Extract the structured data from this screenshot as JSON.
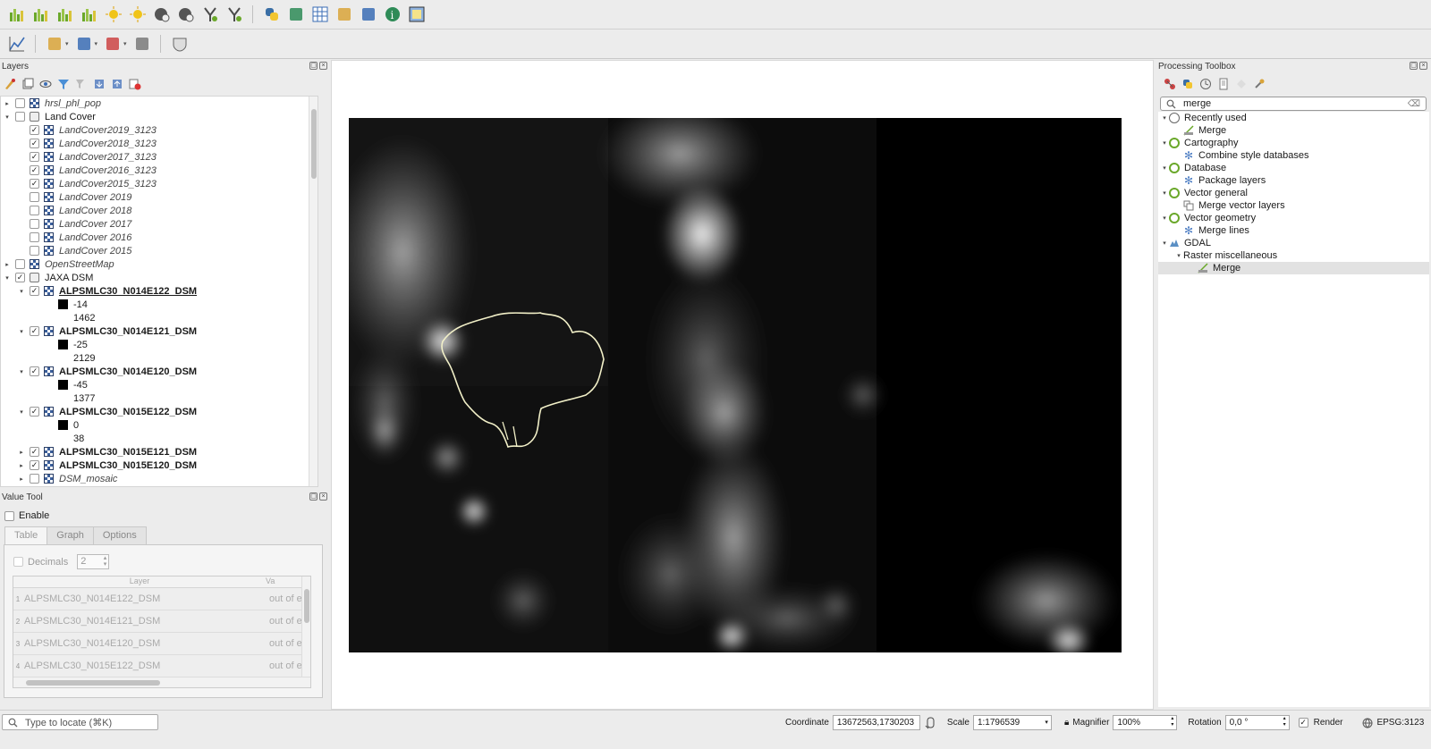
{
  "toolbar1": {
    "icons": [
      "histogram-icon",
      "histogram-edit-icon",
      "histogram-alt-icon",
      "histogram-filter-icon",
      "sun-add-icon",
      "sun-icon",
      "globe-settings-icon",
      "globe-icon",
      "vector-y-icon",
      "vector-y-alt-icon",
      "python-icon",
      "camera-icon",
      "grid-icon",
      "path-tool-icon",
      "sync-icon",
      "info-icon",
      "image-icon"
    ]
  },
  "toolbar2": {
    "icons": [
      "profile-chart-icon",
      "select-features-icon",
      "attribute-table-icon",
      "layer-style-icon",
      "highlight-icon",
      "mask-icon"
    ]
  },
  "layers": {
    "title": "Layers",
    "items": [
      {
        "label": "hrsl_phl_pop",
        "indent": 0,
        "arrow": "▸",
        "checked": false,
        "icon": "raster",
        "style": "ital"
      },
      {
        "label": "Land Cover",
        "indent": 0,
        "arrow": "▾",
        "checked": false,
        "icon": "group",
        "style": "normal"
      },
      {
        "label": "LandCover2019_3123",
        "indent": 1,
        "arrow": "",
        "checked": true,
        "icon": "raster",
        "style": "ital"
      },
      {
        "label": "LandCover2018_3123",
        "indent": 1,
        "arrow": "",
        "checked": true,
        "icon": "raster",
        "style": "ital"
      },
      {
        "label": "LandCover2017_3123",
        "indent": 1,
        "arrow": "",
        "checked": true,
        "icon": "raster",
        "style": "ital"
      },
      {
        "label": "LandCover2016_3123",
        "indent": 1,
        "arrow": "",
        "checked": true,
        "icon": "raster",
        "style": "ital"
      },
      {
        "label": "LandCover2015_3123",
        "indent": 1,
        "arrow": "",
        "checked": true,
        "icon": "raster",
        "style": "ital"
      },
      {
        "label": "LandCover 2019",
        "indent": 1,
        "arrow": "",
        "checked": false,
        "icon": "raster",
        "style": "ital"
      },
      {
        "label": "LandCover 2018",
        "indent": 1,
        "arrow": "",
        "checked": false,
        "icon": "raster",
        "style": "ital"
      },
      {
        "label": "LandCover 2017",
        "indent": 1,
        "arrow": "",
        "checked": false,
        "icon": "raster",
        "style": "ital"
      },
      {
        "label": "LandCover 2016",
        "indent": 1,
        "arrow": "",
        "checked": false,
        "icon": "raster",
        "style": "ital"
      },
      {
        "label": "LandCover 2015",
        "indent": 1,
        "arrow": "",
        "checked": false,
        "icon": "raster",
        "style": "ital"
      },
      {
        "label": "OpenStreetMap",
        "indent": 0,
        "arrow": "▸",
        "checked": false,
        "icon": "raster",
        "style": "ital"
      },
      {
        "label": "JAXA DSM",
        "indent": 0,
        "arrow": "▾",
        "checked": true,
        "icon": "group",
        "style": "normal"
      },
      {
        "label": "ALPSMLC30_N014E122_DSM",
        "indent": 1,
        "arrow": "▾",
        "checked": true,
        "icon": "raster",
        "style": "bold"
      },
      {
        "label": "-14",
        "indent": 2,
        "arrow": "",
        "checked": null,
        "icon": "swatch",
        "style": "normal"
      },
      {
        "label": "1462",
        "indent": 2,
        "arrow": "",
        "checked": null,
        "icon": "none",
        "style": "normal"
      },
      {
        "label": "ALPSMLC30_N014E121_DSM",
        "indent": 1,
        "arrow": "▾",
        "checked": true,
        "icon": "raster",
        "style": "boldnu"
      },
      {
        "label": "-25",
        "indent": 2,
        "arrow": "",
        "checked": null,
        "icon": "swatch",
        "style": "normal"
      },
      {
        "label": "2129",
        "indent": 2,
        "arrow": "",
        "checked": null,
        "icon": "none",
        "style": "normal"
      },
      {
        "label": "ALPSMLC30_N014E120_DSM",
        "indent": 1,
        "arrow": "▾",
        "checked": true,
        "icon": "raster",
        "style": "boldnu"
      },
      {
        "label": "-45",
        "indent": 2,
        "arrow": "",
        "checked": null,
        "icon": "swatch",
        "style": "normal"
      },
      {
        "label": "1377",
        "indent": 2,
        "arrow": "",
        "checked": null,
        "icon": "none",
        "style": "normal"
      },
      {
        "label": "ALPSMLC30_N015E122_DSM",
        "indent": 1,
        "arrow": "▾",
        "checked": true,
        "icon": "raster",
        "style": "boldnu"
      },
      {
        "label": "0",
        "indent": 2,
        "arrow": "",
        "checked": null,
        "icon": "swatch",
        "style": "normal"
      },
      {
        "label": "38",
        "indent": 2,
        "arrow": "",
        "checked": null,
        "icon": "none",
        "style": "normal"
      },
      {
        "label": "ALPSMLC30_N015E121_DSM",
        "indent": 1,
        "arrow": "▸",
        "checked": true,
        "icon": "raster",
        "style": "boldnu"
      },
      {
        "label": "ALPSMLC30_N015E120_DSM",
        "indent": 1,
        "arrow": "▸",
        "checked": true,
        "icon": "raster",
        "style": "boldnu"
      },
      {
        "label": "DSM_mosaic",
        "indent": 1,
        "arrow": "▸",
        "checked": false,
        "icon": "raster",
        "style": "ital"
      }
    ]
  },
  "value_tool": {
    "title": "Value Tool",
    "enable_label": "Enable",
    "tabs": [
      "Table",
      "Graph",
      "Options"
    ],
    "decimals_label": "Decimals",
    "decimals_value": "2",
    "col_layer": "Layer",
    "col_value": "Va",
    "rows": [
      {
        "n": "1",
        "layer": "ALPSMLC30_N014E122_DSM",
        "value": "out of e"
      },
      {
        "n": "2",
        "layer": "ALPSMLC30_N014E121_DSM",
        "value": "out of e"
      },
      {
        "n": "3",
        "layer": "ALPSMLC30_N014E120_DSM",
        "value": "out of e"
      },
      {
        "n": "4",
        "layer": "ALPSMLC30_N015E122_DSM",
        "value": "out of e"
      }
    ]
  },
  "processing": {
    "title": "Processing Toolbox",
    "search_value": "merge",
    "items": [
      {
        "label": "Recently used",
        "indent": 0,
        "arrow": "▾",
        "icon": "clock"
      },
      {
        "label": "Merge",
        "indent": 1,
        "arrow": "",
        "icon": "merge"
      },
      {
        "label": "Cartography",
        "indent": 0,
        "arrow": "▾",
        "icon": "q"
      },
      {
        "label": "Combine style databases",
        "indent": 1,
        "arrow": "",
        "icon": "gear"
      },
      {
        "label": "Database",
        "indent": 0,
        "arrow": "▾",
        "icon": "q"
      },
      {
        "label": "Package layers",
        "indent": 1,
        "arrow": "",
        "icon": "gear"
      },
      {
        "label": "Vector general",
        "indent": 0,
        "arrow": "▾",
        "icon": "q"
      },
      {
        "label": "Merge vector layers",
        "indent": 1,
        "arrow": "",
        "icon": "vector"
      },
      {
        "label": "Vector geometry",
        "indent": 0,
        "arrow": "▾",
        "icon": "q"
      },
      {
        "label": "Merge lines",
        "indent": 1,
        "arrow": "",
        "icon": "gear"
      },
      {
        "label": "GDAL",
        "indent": 0,
        "arrow": "▾",
        "icon": "gdal"
      },
      {
        "label": "Raster miscellaneous",
        "indent": 1,
        "arrow": "▾",
        "icon": "none"
      },
      {
        "label": "Merge",
        "indent": 2,
        "arrow": "",
        "icon": "merge",
        "selected": true
      }
    ]
  },
  "statusbar": {
    "locator_placeholder": "Type to locate (⌘K)",
    "coordinate_label": "Coordinate",
    "coordinate_value": "13672563,1730203",
    "scale_label": "Scale",
    "scale_value": "1:1796539",
    "magnifier_label": "Magnifier",
    "magnifier_value": "100%",
    "rotation_label": "Rotation",
    "rotation_value": "0,0 °",
    "render_label": "Render",
    "crs_value": "EPSG:3123"
  }
}
